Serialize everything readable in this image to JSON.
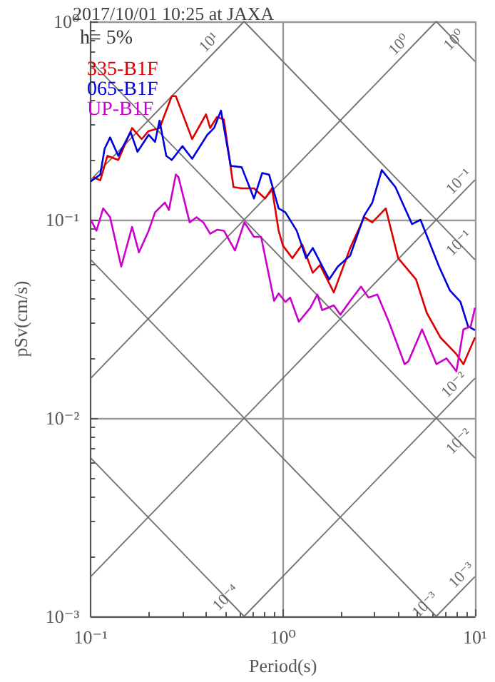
{
  "chart_data": {
    "type": "line",
    "title": "2017/10/01 10:25 at JAXA",
    "xlabel": "Period(s)",
    "ylabel": "pSv(cm/s)",
    "log": "xy",
    "grid": true,
    "legend": "top left",
    "marker": "none",
    "line_style": "solid",
    "xlim": [
      0.1,
      10
    ],
    "ylim": [
      0.001,
      1
    ],
    "xticks": [
      {
        "value": 0.1,
        "label": "10⁻¹"
      },
      {
        "value": 1,
        "label": "10⁰"
      },
      {
        "value": 10,
        "label": "10¹"
      }
    ],
    "yticks": [
      {
        "value": 0.001,
        "label": "10⁻³"
      },
      {
        "value": 0.01,
        "label": "10⁻²"
      },
      {
        "value": 0.1,
        "label": "10⁻¹"
      },
      {
        "value": 1,
        "label": "10⁰"
      }
    ],
    "annotations": [
      "h= 5%",
      {
        "text": "10¹",
        "x": 0.45,
        "y": 0.72
      },
      {
        "text": "10⁰",
        "x": 4.4,
        "y": 0.7
      },
      {
        "text": "10⁰",
        "x": 8.5,
        "y": 0.74
      },
      {
        "text": "10⁻¹",
        "x": 9,
        "y": 0.143
      },
      {
        "text": "10⁻¹",
        "x": 9,
        "y": 0.07
      },
      {
        "text": "10⁻²",
        "x": 8.5,
        "y": 0.0135
      },
      {
        "text": "10⁻²",
        "x": 9,
        "y": 0.007
      },
      {
        "text": "10⁻³",
        "x": 9.3,
        "y": 0.00148
      },
      {
        "text": "10⁻³",
        "x": 6,
        "y": 0.00105
      },
      {
        "text": "10⁻⁴",
        "x": 0.55,
        "y": 0.00114
      }
    ],
    "series": [
      {
        "name": "335-B1F",
        "color": "#dd0000",
        "x": [
          0.103,
          0.112,
          0.122,
          0.139,
          0.164,
          0.184,
          0.2,
          0.228,
          0.264,
          0.277,
          0.337,
          0.398,
          0.418,
          0.454,
          0.493,
          0.553,
          0.61,
          0.707,
          0.808,
          0.877,
          0.95,
          1.0,
          1.12,
          1.26,
          1.43,
          1.56,
          1.84,
          2.24,
          2.65,
          2.92,
          3.43,
          3.98,
          4.93,
          5.6,
          6.6,
          8.0,
          8.7,
          10
        ],
        "values": [
          0.164,
          0.158,
          0.21,
          0.2,
          0.29,
          0.255,
          0.28,
          0.29,
          0.42,
          0.42,
          0.255,
          0.34,
          0.29,
          0.33,
          0.32,
          0.146,
          0.144,
          0.144,
          0.128,
          0.144,
          0.088,
          0.074,
          0.064,
          0.075,
          0.054,
          0.059,
          0.043,
          0.072,
          0.103,
          0.097,
          0.114,
          0.064,
          0.05,
          0.034,
          0.0255,
          0.021,
          0.0187,
          0.0255
        ]
      },
      {
        "name": "065-B1F",
        "color": "#0000dd",
        "x": [
          0.1,
          0.112,
          0.118,
          0.126,
          0.139,
          0.161,
          0.175,
          0.2,
          0.216,
          0.228,
          0.247,
          0.264,
          0.3,
          0.337,
          0.404,
          0.439,
          0.476,
          0.535,
          0.61,
          0.707,
          0.78,
          0.847,
          0.95,
          1.03,
          1.18,
          1.32,
          1.43,
          1.74,
          1.93,
          2.24,
          2.65,
          2.92,
          3.27,
          3.85,
          4.7,
          5.2,
          6.5,
          7.4,
          8.4,
          9.2,
          10
        ],
        "values": [
          0.156,
          0.169,
          0.228,
          0.26,
          0.21,
          0.277,
          0.22,
          0.268,
          0.247,
          0.316,
          0.21,
          0.2,
          0.235,
          0.203,
          0.268,
          0.291,
          0.355,
          0.187,
          0.184,
          0.128,
          0.172,
          0.169,
          0.114,
          0.109,
          0.088,
          0.064,
          0.072,
          0.05,
          0.058,
          0.066,
          0.105,
          0.122,
          0.178,
          0.146,
          0.095,
          0.1,
          0.058,
          0.044,
          0.0385,
          0.029,
          0.0277
        ]
      },
      {
        "name": "UP-B1F",
        "color": "#cc00cc",
        "x": [
          0.1,
          0.107,
          0.116,
          0.126,
          0.144,
          0.164,
          0.178,
          0.2,
          0.216,
          0.243,
          0.255,
          0.277,
          0.286,
          0.327,
          0.355,
          0.385,
          0.418,
          0.454,
          0.493,
          0.563,
          0.63,
          0.707,
          0.77,
          0.9,
          0.95,
          1.03,
          1.09,
          1.21,
          1.39,
          1.51,
          1.6,
          1.84,
          1.99,
          2.24,
          2.55,
          2.79,
          3.1,
          3.56,
          4.3,
          4.5,
          5.3,
          6.3,
          7.1,
          8.0,
          8.7,
          9.5,
          10
        ],
        "values": [
          0.1,
          0.088,
          0.114,
          0.103,
          0.058,
          0.092,
          0.0685,
          0.088,
          0.109,
          0.122,
          0.112,
          0.169,
          0.164,
          0.097,
          0.103,
          0.097,
          0.085,
          0.089,
          0.088,
          0.07,
          0.097,
          0.082,
          0.082,
          0.039,
          0.0425,
          0.0385,
          0.0405,
          0.0306,
          0.036,
          0.042,
          0.035,
          0.037,
          0.0332,
          0.039,
          0.046,
          0.0405,
          0.042,
          0.0306,
          0.0187,
          0.0193,
          0.028,
          0.0187,
          0.02,
          0.0172,
          0.028,
          0.029,
          0.036
        ]
      },
      {
        "color": "#707070",
        "x": [
          0.1,
          0.628
        ],
        "values": [
          0.159,
          1
        ]
      },
      {
        "color": "#707070",
        "x": [
          0.1,
          6.28
        ],
        "values": [
          0.0159,
          1
        ]
      },
      {
        "color": "#707070",
        "x": [
          0.1,
          10
        ],
        "values": [
          0.00159,
          0.159
        ]
      },
      {
        "color": "#707070",
        "x": [
          0.628,
          10
        ],
        "values": [
          0.001,
          0.0159
        ]
      },
      {
        "color": "#707070",
        "x": [
          6.28,
          10
        ],
        "values": [
          0.001,
          0.00159
        ]
      },
      {
        "color": "#707070",
        "x": [
          6.28,
          10
        ],
        "values": [
          1,
          0.628
        ]
      },
      {
        "color": "#707070",
        "x": [
          0.628,
          10
        ],
        "values": [
          1,
          0.0628
        ]
      },
      {
        "color": "#707070",
        "x": [
          0.1,
          10
        ],
        "values": [
          0.628,
          0.00628
        ]
      },
      {
        "color": "#707070",
        "x": [
          0.1,
          6.28
        ],
        "values": [
          0.0628,
          0.001
        ]
      },
      {
        "color": "#707070",
        "x": [
          0.1,
          0.628
        ],
        "values": [
          0.00628,
          0.001
        ]
      }
    ]
  }
}
